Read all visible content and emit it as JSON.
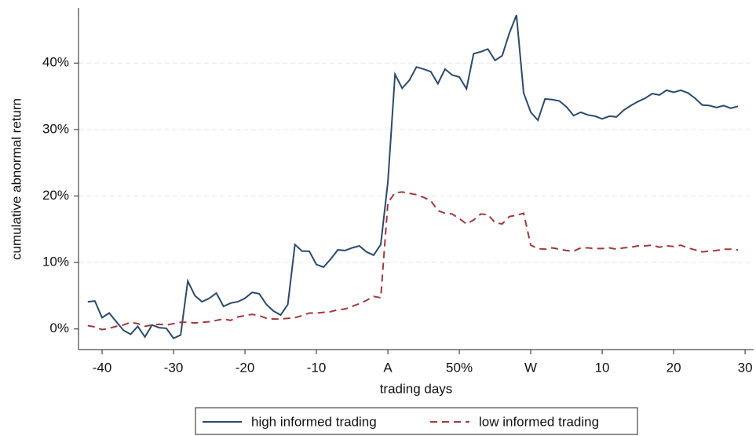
{
  "chart_data": {
    "type": "line",
    "x_label": "trading days",
    "y_label": "cumulative abnormal return",
    "x": [
      -42,
      -41,
      -40,
      -39,
      -38,
      -37,
      -36,
      -35,
      -34,
      -33,
      -32,
      -31,
      -30,
      -29,
      -28,
      -27,
      -26,
      -25,
      -24,
      -23,
      -22,
      -21,
      -20,
      -19,
      -18,
      -17,
      -16,
      -15,
      -14,
      -13,
      -12,
      -11,
      -10,
      -9,
      -8,
      -7,
      -6,
      -5,
      -4,
      -3,
      -2,
      -1,
      0,
      1,
      2,
      3,
      4,
      5,
      6,
      7,
      8,
      9,
      10,
      11,
      12,
      13,
      14,
      15,
      16,
      17,
      18,
      19,
      20,
      21,
      22,
      23,
      24,
      25,
      26,
      27,
      28,
      29,
      30,
      31,
      32,
      33,
      34,
      35,
      36,
      37,
      38,
      39,
      40,
      41,
      42,
      43,
      44,
      45,
      46,
      47,
      48,
      49
    ],
    "series": [
      {
        "name": "high informed trading",
        "color": "#2b4a6b",
        "dash": "solid",
        "values": [
          4.1,
          4.2,
          1.7,
          2.4,
          1.1,
          -0.2,
          -0.8,
          0.4,
          -1.2,
          0.6,
          0.2,
          0.1,
          -1.4,
          -0.9,
          7.2,
          5.0,
          4.1,
          4.6,
          5.4,
          3.4,
          3.9,
          4.1,
          4.6,
          5.5,
          5.3,
          3.7,
          2.7,
          2.1,
          3.7,
          12.7,
          11.7,
          11.7,
          9.7,
          9.3,
          10.5,
          11.9,
          11.8,
          12.2,
          12.5,
          11.6,
          11.1,
          12.7,
          22.1,
          38.3,
          36.2,
          37.4,
          39.4,
          39.1,
          38.7,
          36.9,
          39.1,
          38.2,
          37.9,
          36.1,
          41.4,
          41.7,
          42.1,
          40.4,
          41.1,
          44.5,
          47.2,
          35.5,
          32.6,
          31.4,
          34.6,
          34.5,
          34.3,
          33.4,
          32.1,
          32.6,
          32.2,
          32.0,
          31.6,
          32.0,
          31.9,
          32.9,
          33.6,
          34.2,
          34.7,
          35.4,
          35.2,
          35.9,
          35.6,
          35.9,
          35.5,
          34.7,
          33.7,
          33.6,
          33.3,
          33.6,
          33.2,
          33.5
        ]
      },
      {
        "name": "low informed trading",
        "color": "#a0393c",
        "dash": "dashed",
        "values": [
          0.5,
          0.3,
          -0.1,
          0.1,
          0.4,
          0.6,
          1.0,
          0.8,
          0.4,
          0.6,
          0.7,
          0.6,
          0.8,
          1.0,
          1.0,
          0.9,
          1.0,
          1.1,
          1.3,
          1.5,
          1.3,
          1.8,
          2.0,
          2.2,
          2.0,
          1.6,
          1.5,
          1.5,
          1.6,
          1.7,
          2.0,
          2.4,
          2.4,
          2.5,
          2.6,
          2.9,
          3.0,
          3.4,
          3.8,
          4.3,
          4.9,
          4.7,
          19.0,
          20.5,
          20.6,
          20.4,
          20.2,
          19.8,
          19.3,
          17.8,
          17.4,
          17.3,
          16.6,
          15.8,
          16.4,
          17.3,
          17.2,
          16.0,
          15.8,
          16.9,
          17.1,
          17.4,
          12.6,
          12.1,
          12.0,
          12.2,
          12.0,
          11.8,
          11.7,
          12.2,
          12.2,
          12.1,
          12.1,
          12.2,
          12.0,
          12.2,
          12.3,
          12.5,
          12.5,
          12.6,
          12.3,
          12.5,
          12.4,
          12.6,
          12.2,
          11.9,
          11.6,
          11.7,
          11.8,
          12.0,
          12.0,
          11.9
        ]
      }
    ],
    "xlim": [
      -43.3,
      51.2
    ],
    "ylim": [
      -3.1,
      48.3
    ],
    "xticks": [
      -40,
      -30,
      -20,
      -10,
      {
        "value": 0,
        "label": "A"
      },
      {
        "value": 10,
        "label": "50%"
      },
      {
        "value": 20,
        "label": "W"
      },
      {
        "value": 30,
        "label": "10"
      },
      {
        "value": 40,
        "label": "20"
      },
      {
        "value": 50,
        "label": "30"
      }
    ],
    "yticks": [
      {
        "value": 0,
        "label": "0%"
      },
      {
        "value": 10,
        "label": "10%"
      },
      {
        "value": 20,
        "label": "20%"
      },
      {
        "value": 30,
        "label": "30%"
      },
      {
        "value": 40,
        "label": "40%"
      }
    ],
    "grid": true
  }
}
